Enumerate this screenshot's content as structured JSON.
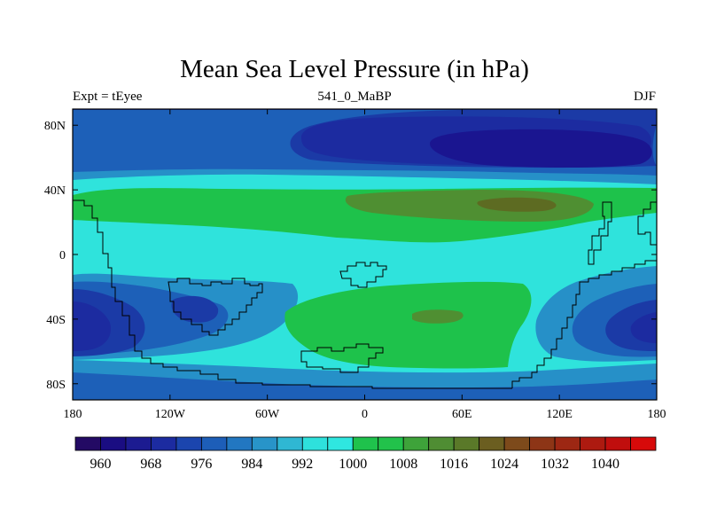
{
  "plot": {
    "title": "Mean Sea Level Pressure (in hPa)",
    "left_string": "Expt = tEyee",
    "center_string": "541_0_MaBP",
    "right_string": "DJF"
  },
  "axes": {
    "x_ticks": [
      "180",
      "120W",
      "60W",
      "0",
      "60E",
      "120E",
      "180"
    ],
    "y_ticks": [
      "80N",
      "40N",
      "0",
      "40S",
      "80S"
    ]
  },
  "colorbar": {
    "colors": [
      "#230a64",
      "#1a0d82",
      "#1c1b91",
      "#1c2ba0",
      "#1b45ae",
      "#1d5eb8",
      "#2277c1",
      "#2894c9",
      "#2fb7d3",
      "#2ee1dc",
      "#2fe7e0",
      "#1fc24c",
      "#22c24b",
      "#3ea33a",
      "#4f8d33",
      "#5a7929",
      "#6b5e20",
      "#7d4a1b",
      "#8d3516",
      "#9d2713",
      "#ad1a10",
      "#c00e0d",
      "#d70a0a"
    ],
    "labels": [
      "960",
      "968",
      "976",
      "984",
      "992",
      "1000",
      "1008",
      "1016",
      "1024",
      "1032",
      "1040"
    ]
  },
  "legend_levels": {
    "deep_low": "#1a1590",
    "low": "#1b3aa6",
    "mid_low": "#1d60b8",
    "lower": "#2690c8",
    "base": "#2fe3dc",
    "high": "#1ec24b",
    "higher": "#4f8f32",
    "peak": "#5d6b22"
  }
}
